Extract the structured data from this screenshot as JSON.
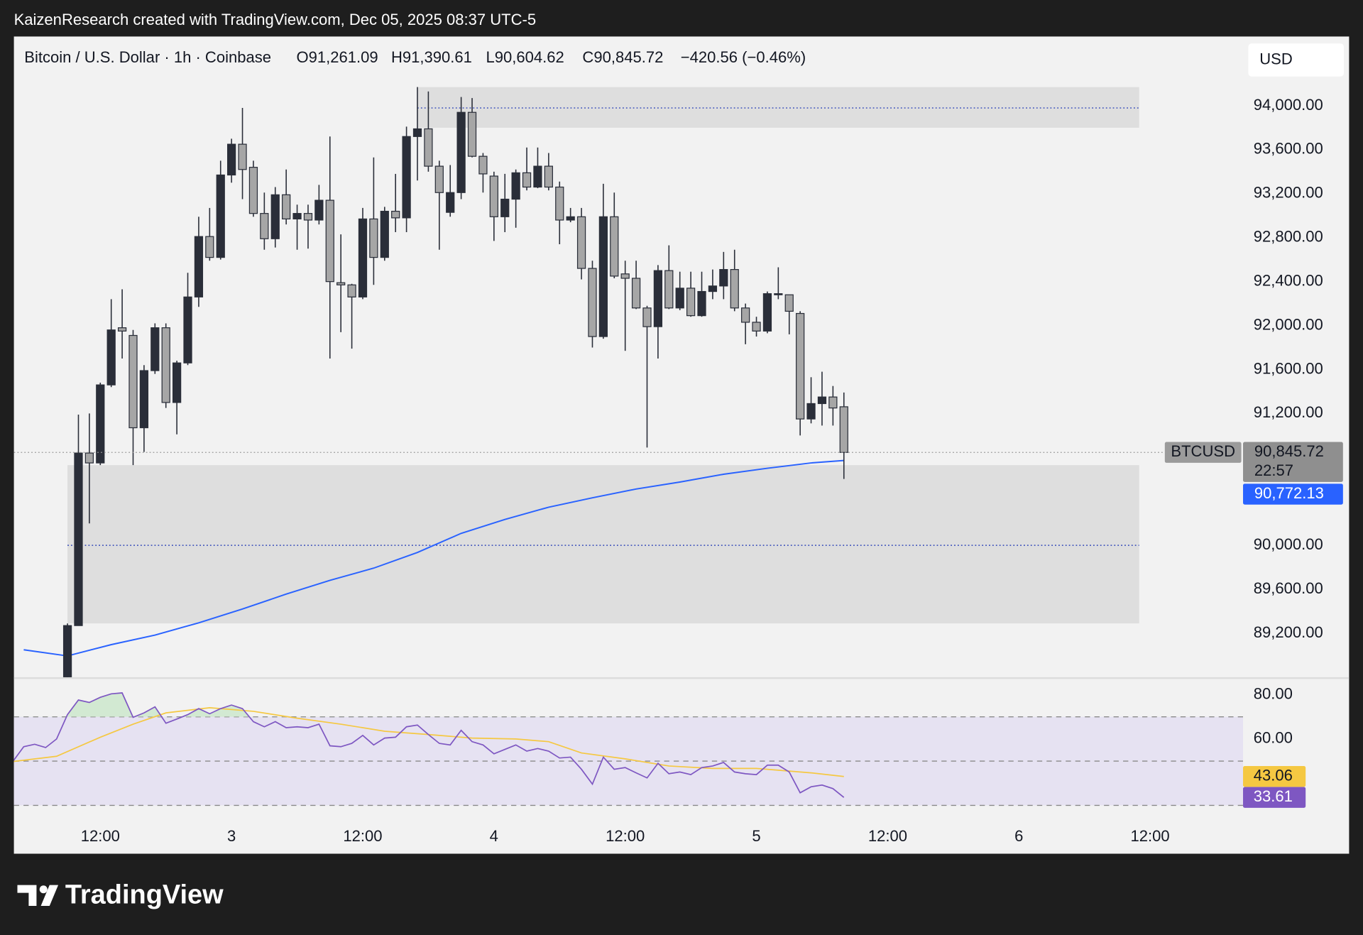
{
  "header": {
    "attribution": "KaizenResearch created with TradingView.com, Dec 05, 2025 08:37 UTC-5"
  },
  "chart_data": {
    "type": "candlestick",
    "legend": {
      "symbol": "Bitcoin / U.S. Dollar · 1h · Coinbase",
      "open": "O91,261.09",
      "high": "H91,390.61",
      "low": "L90,604.62",
      "close": "C90,845.72",
      "change": "−420.56 (−0.46%)"
    },
    "currency": "USD",
    "x": [
      9,
      10,
      11,
      12,
      13,
      14,
      15,
      16,
      17,
      18,
      19,
      20,
      21,
      22,
      23,
      24,
      25,
      26,
      27,
      28,
      29,
      30,
      31,
      32,
      33,
      34,
      35,
      36,
      37,
      38,
      39,
      40,
      41,
      42,
      43,
      44,
      45,
      46,
      47,
      48,
      49,
      50,
      51,
      52,
      53,
      54,
      55,
      56,
      57,
      58,
      59,
      60,
      61,
      62,
      63,
      64,
      65,
      66,
      67,
      68,
      69,
      70,
      71,
      72,
      73,
      74,
      75,
      76,
      77,
      78,
      79,
      80
    ],
    "open": [
      88800,
      89270,
      90840,
      90750,
      91460,
      91980,
      91910,
      91070,
      91590,
      91980,
      91300,
      91660,
      92260,
      92810,
      92620,
      93370,
      93650,
      93440,
      93020,
      92790,
      93190,
      92970,
      93020,
      92960,
      93140,
      92390,
      92370,
      92260,
      92970,
      92620,
      93040,
      92980,
      93720,
      93790,
      93450,
      93030,
      93210,
      93940,
      93540,
      93360,
      92990,
      93150,
      93390,
      93260,
      93450,
      93260,
      92960,
      92990,
      92520,
      91900,
      92990,
      92470,
      92430,
      92160,
      91990,
      92500,
      92160,
      92340,
      92090,
      92310,
      92360,
      92510,
      92160,
      92030,
      91950,
      92280,
      92280,
      92110,
      91150,
      91290,
      91350,
      91261.09
    ],
    "high": [
      89290,
      91190,
      91200,
      91480,
      92240,
      92330,
      91960,
      91640,
      92020,
      92020,
      91680,
      92480,
      92990,
      93070,
      93500,
      93700,
      93980,
      93500,
      93210,
      93260,
      93420,
      93100,
      93100,
      93280,
      93720,
      92830,
      92380,
      93070,
      93530,
      93080,
      93380,
      93810,
      94170,
      94130,
      93500,
      93460,
      94080,
      94070,
      93570,
      93400,
      93380,
      93420,
      93620,
      93620,
      93570,
      93310,
      93070,
      93070,
      92590,
      93290,
      93210,
      92590,
      92590,
      92180,
      92550,
      92730,
      92490,
      92490,
      92490,
      92510,
      92670,
      92690,
      92200,
      92080,
      92310,
      92530,
      92280,
      92130,
      91530,
      91580,
      91450,
      91390.61
    ],
    "low": [
      88790,
      89270,
      90200,
      90730,
      91440,
      91700,
      90730,
      90850,
      91560,
      91250,
      91010,
      91640,
      92170,
      92590,
      92600,
      93300,
      93150,
      92990,
      92690,
      92710,
      92920,
      92690,
      92700,
      92920,
      91700,
      91940,
      91790,
      92240,
      92370,
      92590,
      92850,
      92850,
      93320,
      93400,
      92690,
      92990,
      93150,
      93530,
      93210,
      92770,
      92850,
      92890,
      93230,
      93250,
      93230,
      92740,
      92940,
      92420,
      91800,
      91880,
      92430,
      91770,
      92150,
      90890,
      91700,
      92150,
      92140,
      92080,
      92080,
      92240,
      92240,
      92130,
      91830,
      91900,
      91930,
      92240,
      91920,
      91000,
      91110,
      91090,
      91090,
      90604.62
    ],
    "close": [
      89270,
      90840,
      90750,
      91460,
      91960,
      91950,
      91070,
      91590,
      91980,
      91300,
      91660,
      92260,
      92810,
      92620,
      93370,
      93650,
      93420,
      93020,
      92790,
      93190,
      92970,
      93020,
      92960,
      93140,
      92400,
      92370,
      92260,
      92970,
      92620,
      93040,
      92980,
      93720,
      93790,
      93450,
      93210,
      93210,
      93940,
      93540,
      93380,
      92990,
      93150,
      93390,
      93260,
      93450,
      93260,
      92960,
      92990,
      92520,
      91900,
      92990,
      92450,
      92430,
      92160,
      91990,
      92500,
      92160,
      92340,
      92090,
      92310,
      92360,
      92510,
      92160,
      92030,
      91950,
      92290,
      92290,
      92130,
      91150,
      91290,
      91350,
      91250,
      90845.72
    ],
    "up_color": "#2a2e39",
    "down_color": "#a6a6a6",
    "xlim": [
      4.1,
      116.5
    ],
    "xticks": [
      {
        "value": 12,
        "label": "12:00"
      },
      {
        "value": 24,
        "label": "3"
      },
      {
        "value": 36,
        "label": "12:00"
      },
      {
        "value": 48,
        "label": "4"
      },
      {
        "value": 60,
        "label": "12:00"
      },
      {
        "value": 72,
        "label": "5"
      },
      {
        "value": 84,
        "label": "12:00"
      },
      {
        "value": 96,
        "label": "6"
      },
      {
        "value": 108,
        "label": "12:00"
      }
    ],
    "ylim": [
      88800,
      94630
    ],
    "yticks": [
      {
        "value": 94000,
        "label": "94,000.00"
      },
      {
        "value": 93600,
        "label": "93,600.00"
      },
      {
        "value": 93200,
        "label": "93,200.00"
      },
      {
        "value": 92800,
        "label": "92,800.00"
      },
      {
        "value": 92400,
        "label": "92,400.00"
      },
      {
        "value": 92000,
        "label": "92,000.00"
      },
      {
        "value": 91600,
        "label": "91,600.00"
      },
      {
        "value": 91200,
        "label": "91,200.00"
      },
      {
        "value": 90000,
        "label": "90,000.00"
      },
      {
        "value": 89600,
        "label": "89,600.00"
      },
      {
        "value": 89200,
        "label": "89,200.00"
      }
    ],
    "zones": [
      {
        "x": [
          41,
          107
        ],
        "y": [
          93800,
          94170
        ],
        "level": 93980
      },
      {
        "x": [
          9,
          107
        ],
        "y": [
          89290,
          90730
        ],
        "level": 90000
      }
    ],
    "price_line": {
      "name": "BTCUSD",
      "value_label": "90,845.72",
      "countdown": "22:57",
      "color": "#8f8f8f"
    },
    "ema": {
      "color": "#2962ff",
      "x": [
        5,
        9,
        13,
        17,
        21,
        25,
        29,
        33,
        37,
        41,
        45,
        49,
        53,
        57,
        61,
        65,
        69,
        73,
        77,
        80
      ],
      "values": [
        89050,
        88994,
        89097,
        89184,
        89295,
        89421,
        89556,
        89682,
        89793,
        89935,
        90109,
        90236,
        90347,
        90433,
        90513,
        90576,
        90647,
        90702,
        90750,
        90772.13
      ],
      "value_label": "90,772.13"
    },
    "rsi": {
      "ylim": [
        22.7,
        87.1
      ],
      "yticks": [
        {
          "value": 80,
          "label": "80.00"
        },
        {
          "value": 60,
          "label": "60.00"
        }
      ],
      "levels": [
        70,
        50,
        30
      ],
      "color": "#7e57c2",
      "x": [
        4,
        5,
        6,
        7,
        8,
        9,
        10,
        11,
        12,
        13,
        14,
        15,
        16,
        17,
        18,
        19,
        20,
        21,
        22,
        23,
        24,
        25,
        26,
        27,
        28,
        29,
        30,
        31,
        32,
        33,
        34,
        35,
        36,
        37,
        38,
        39,
        40,
        41,
        42,
        43,
        44,
        45,
        46,
        47,
        48,
        49,
        50,
        51,
        52,
        53,
        54,
        55,
        56,
        57,
        58,
        59,
        60,
        61,
        62,
        63,
        64,
        65,
        66,
        67,
        68,
        69,
        70,
        71,
        72,
        73,
        74,
        75,
        76,
        77,
        78,
        79,
        80
      ],
      "values": [
        49.8,
        56.5,
        57.6,
        56.1,
        60.0,
        71.0,
        77.6,
        76.5,
        78.8,
        80.4,
        80.8,
        69.8,
        71.8,
        74.5,
        67.1,
        69.0,
        71.0,
        73.7,
        71.4,
        73.7,
        75.3,
        73.7,
        67.8,
        65.5,
        67.8,
        65.1,
        65.5,
        65.1,
        66.7,
        56.9,
        56.5,
        58.0,
        61.6,
        57.3,
        60.4,
        60.8,
        65.5,
        66.3,
        62.0,
        58.0,
        57.3,
        63.9,
        58.8,
        57.3,
        53.3,
        55.3,
        57.3,
        54.5,
        55.7,
        54.5,
        51.4,
        51.8,
        46.3,
        39.6,
        51.8,
        46.3,
        47.1,
        44.7,
        42.4,
        49.0,
        44.3,
        45.1,
        43.9,
        47.1,
        47.8,
        49.4,
        45.1,
        44.3,
        43.9,
        48.2,
        48.2,
        45.1,
        35.7,
        38.4,
        39.2,
        37.6,
        33.61
      ],
      "value_label": "33.61",
      "ma": {
        "color": "#f5c842",
        "x": [
          4,
          8,
          12,
          15,
          18,
          22,
          26,
          30,
          34,
          38,
          42,
          46,
          50,
          53,
          56,
          60,
          64,
          68,
          72,
          77,
          80
        ],
        "values": [
          49.8,
          52.2,
          60.8,
          66.7,
          71.8,
          74.1,
          72.5,
          69.4,
          66.7,
          63.5,
          62.0,
          60.4,
          60.0,
          58.8,
          53.7,
          51.0,
          47.8,
          46.7,
          46.7,
          44.7,
          43.06
        ],
        "value_label": "43.06"
      }
    }
  },
  "footer": {
    "logo": "TradingView"
  }
}
